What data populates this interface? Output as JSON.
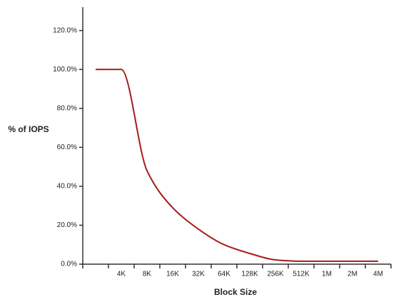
{
  "chart_data": {
    "type": "line",
    "x_label": "Block Size",
    "y_label": "% of IOPS",
    "categories": [
      null,
      "4K",
      "8K",
      "16K",
      "32K",
      "64K",
      "128K",
      "256K",
      "512K",
      "1M",
      "2M",
      "4M"
    ],
    "series": [
      {
        "name": "% of IOPS",
        "color": "#a51c1c",
        "values": [
          100,
          100,
          48,
          29,
          18,
          10,
          5.5,
          2.2,
          1.5,
          1.5,
          1.5,
          1.5
        ]
      }
    ],
    "ylim": [
      0,
      132
    ],
    "yticks": [
      {
        "value": 0,
        "label": "0.0%"
      },
      {
        "value": 20,
        "label": "20.0%"
      },
      {
        "value": 40,
        "label": "40.0%"
      },
      {
        "value": 60,
        "label": "60.0%"
      },
      {
        "value": 80,
        "label": "80.0%"
      },
      {
        "value": 100,
        "label": "100.0%"
      },
      {
        "value": 120,
        "label": "120.0%"
      }
    ],
    "grid": false
  }
}
